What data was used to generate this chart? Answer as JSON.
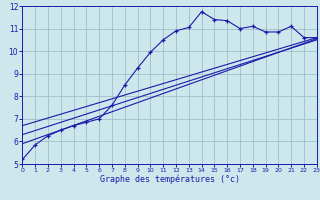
{
  "xlabel": "Graphe des températures (°c)",
  "bg_color": "#cde8ec",
  "grid_color": "#a0bfc8",
  "line_color": "#1a1aaa",
  "xlim": [
    0,
    23
  ],
  "ylim": [
    5,
    12
  ],
  "yticks": [
    5,
    6,
    7,
    8,
    9,
    10,
    11,
    12
  ],
  "xticks": [
    0,
    1,
    2,
    3,
    4,
    5,
    6,
    7,
    8,
    9,
    10,
    11,
    12,
    13,
    14,
    15,
    16,
    17,
    18,
    19,
    20,
    21,
    22,
    23
  ],
  "main_x": [
    0,
    1,
    2,
    3,
    4,
    5,
    6,
    7,
    8,
    9,
    10,
    11,
    12,
    13,
    14,
    15,
    16,
    17,
    18,
    19,
    20,
    21,
    22,
    23
  ],
  "main_y": [
    5.2,
    5.85,
    6.25,
    6.5,
    6.7,
    6.85,
    7.0,
    7.6,
    8.5,
    9.25,
    9.95,
    10.5,
    10.9,
    11.05,
    11.75,
    11.4,
    11.35,
    11.0,
    11.1,
    10.85,
    10.85,
    11.1,
    10.6,
    10.6
  ],
  "line2_x": [
    0,
    23
  ],
  "line2_y": [
    6.7,
    10.6
  ],
  "line3_x": [
    0,
    23
  ],
  "line3_y": [
    6.3,
    10.5
  ],
  "line4_x": [
    0,
    23
  ],
  "line4_y": [
    5.9,
    10.55
  ]
}
